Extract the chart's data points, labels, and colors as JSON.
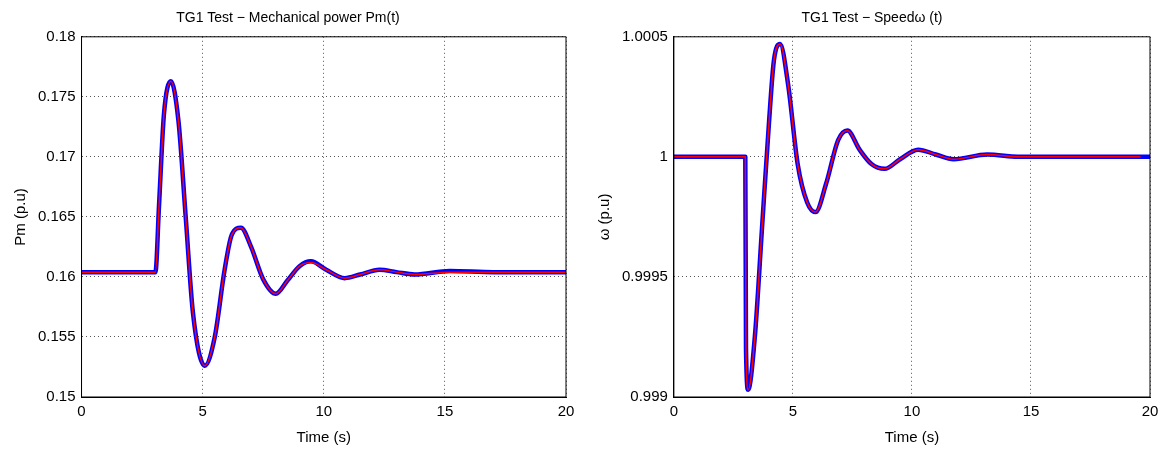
{
  "chart_data": [
    {
      "type": "line",
      "title": "TG1 Test − Mechanical power Pm(t)",
      "xlabel": "Time (s)",
      "ylabel": "Pm (p.u)",
      "xlim": [
        0,
        20
      ],
      "xticks": [
        0,
        5,
        10,
        15,
        20
      ],
      "ylim": [
        0.15,
        0.18
      ],
      "yticks": [
        0.15,
        0.155,
        0.16,
        0.165,
        0.17,
        0.175,
        0.18
      ],
      "grid": true,
      "series": [
        {
          "color": "#0000ff",
          "x": [
            0,
            3.05,
            3.2,
            3.4,
            3.69,
            4.0,
            4.3,
            4.6,
            5.09,
            5.5,
            5.9,
            6.2,
            6.58,
            7.0,
            7.5,
            8.02,
            8.5,
            9.0,
            9.47,
            10.1,
            10.87,
            11.5,
            12.3,
            13.0,
            13.75,
            15.2,
            17,
            20
          ],
          "values": [
            0.1604,
            0.1604,
            0.166,
            0.1735,
            0.1763,
            0.173,
            0.165,
            0.157,
            0.1526,
            0.155,
            0.1605,
            0.1635,
            0.1641,
            0.1625,
            0.1598,
            0.1586,
            0.1597,
            0.1609,
            0.1613,
            0.1606,
            0.1599,
            0.1602,
            0.1606,
            0.1604,
            0.1602,
            0.1605,
            0.1604,
            0.1604
          ]
        },
        {
          "color": "#ff0000",
          "x": [
            0,
            3.05,
            3.2,
            3.4,
            3.69,
            4.0,
            4.3,
            4.6,
            5.09,
            5.5,
            5.9,
            6.2,
            6.58,
            7.0,
            7.5,
            8.02,
            8.5,
            9.0,
            9.47,
            10.1,
            10.87,
            11.5,
            12.3,
            13.0,
            13.75,
            15.2,
            17,
            20
          ],
          "values": [
            0.1604,
            0.1604,
            0.166,
            0.1735,
            0.1763,
            0.173,
            0.165,
            0.157,
            0.1526,
            0.155,
            0.1605,
            0.1635,
            0.1641,
            0.1625,
            0.1598,
            0.1586,
            0.1597,
            0.1609,
            0.1612,
            0.1606,
            0.1599,
            0.1602,
            0.1606,
            0.1604,
            0.1602,
            0.1604,
            0.1604,
            0.1604
          ]
        }
      ]
    },
    {
      "type": "line",
      "title": "TG1 Test − Speedω (t)",
      "xlabel": "Time (s)",
      "ylabel": "ω (p.u)",
      "xlim": [
        0,
        20
      ],
      "xticks": [
        0,
        5,
        10,
        15,
        20
      ],
      "ylim": [
        0.999,
        1.0005
      ],
      "yticks": [
        0.999,
        0.9995,
        1,
        1.0005
      ],
      "grid": true,
      "series": [
        {
          "color": "#0000ff",
          "x": [
            0,
            3.0,
            3.03,
            3.12,
            3.4,
            3.7,
            4.0,
            4.2,
            4.46,
            4.8,
            5.2,
            5.6,
            5.95,
            6.4,
            6.9,
            7.29,
            7.8,
            8.3,
            8.85,
            9.5,
            10.26,
            11,
            11.75,
            13.16,
            14.57,
            20
          ],
          "values": [
            1,
            1,
            0.9992,
            0.99903,
            0.99925,
            0.9997,
            1.00015,
            1.0004,
            1.00047,
            1.0003,
            0.99997,
            0.99981,
            0.99977,
            0.99989,
            1.00007,
            1.00011,
            1.00003,
            0.99997,
            0.99995,
            0.99999,
            1.00003,
            1.00001,
            0.99999,
            1.00001,
            1,
            1
          ]
        },
        {
          "color": "#ff0000",
          "x": [
            0,
            3.0,
            3.03,
            3.12,
            3.4,
            3.7,
            4.0,
            4.2,
            4.46,
            4.8,
            5.2,
            5.6,
            5.95,
            6.4,
            6.9,
            7.29,
            7.8,
            8.3,
            8.85,
            9.5,
            10.26,
            11,
            11.75,
            13.16,
            14.57,
            19.6
          ],
          "values": [
            1,
            1,
            0.9992,
            0.99903,
            0.99925,
            0.9997,
            1.00015,
            1.0004,
            1.00047,
            1.0003,
            0.99997,
            0.99981,
            0.99977,
            0.99989,
            1.00007,
            1.00011,
            1.00003,
            0.99997,
            0.99995,
            0.99999,
            1.00003,
            1.00001,
            0.99999,
            1.00001,
            1,
            1
          ]
        }
      ]
    }
  ]
}
